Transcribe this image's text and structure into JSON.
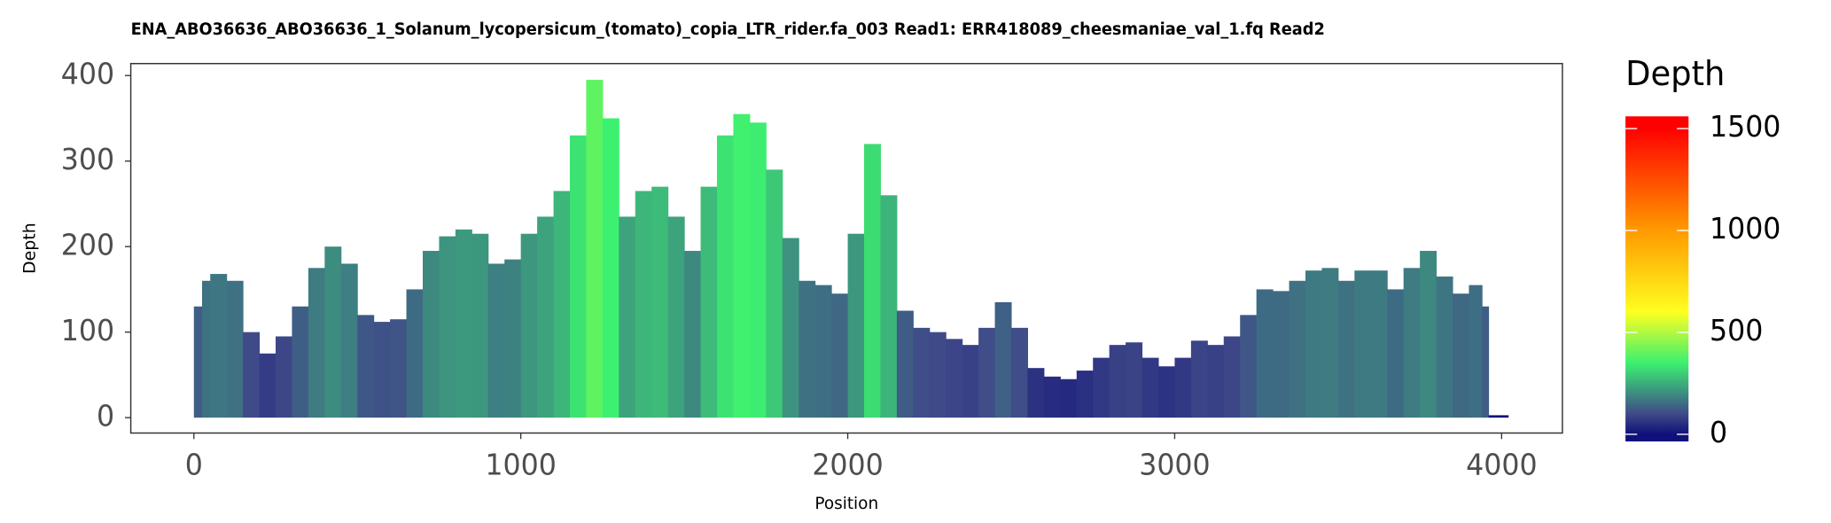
{
  "chart_data": {
    "type": "bar",
    "title": "ENA_ABO36636_ABO36636_1_Solanum_lycopersicum_(tomato)_copia_LTR_rider.fa_003   Read1: ERR418089_cheesmaniae_val_1.fq   Read2",
    "x_label": "Position",
    "y_label": "Depth",
    "legend_title": "Depth",
    "x": [
      0,
      25,
      50,
      100,
      150,
      200,
      250,
      300,
      350,
      400,
      450,
      500,
      550,
      600,
      650,
      700,
      750,
      800,
      850,
      900,
      950,
      1000,
      1050,
      1100,
      1150,
      1200,
      1250,
      1300,
      1350,
      1400,
      1450,
      1500,
      1550,
      1600,
      1650,
      1700,
      1750,
      1800,
      1850,
      1900,
      1950,
      2000,
      2050,
      2100,
      2150,
      2200,
      2250,
      2300,
      2350,
      2400,
      2450,
      2500,
      2550,
      2600,
      2650,
      2700,
      2750,
      2800,
      2850,
      2900,
      2950,
      3000,
      3050,
      3100,
      3150,
      3200,
      3250,
      3300,
      3350,
      3400,
      3450,
      3500,
      3550,
      3600,
      3650,
      3700,
      3750,
      3800,
      3850,
      3900,
      3940,
      3960,
      3990
    ],
    "values": [
      130,
      160,
      168,
      160,
      100,
      75,
      95,
      130,
      175,
      200,
      180,
      120,
      112,
      115,
      150,
      195,
      212,
      220,
      215,
      180,
      185,
      215,
      235,
      265,
      330,
      395,
      350,
      235,
      265,
      270,
      235,
      195,
      270,
      330,
      355,
      345,
      290,
      210,
      160,
      155,
      145,
      215,
      320,
      260,
      125,
      105,
      100,
      92,
      85,
      105,
      135,
      105,
      58,
      48,
      45,
      55,
      70,
      85,
      88,
      70,
      60,
      70,
      90,
      85,
      95,
      120,
      150,
      148,
      160,
      172,
      175,
      160,
      172,
      172,
      150,
      175,
      195,
      165,
      145,
      155,
      130,
      2,
      2
    ],
    "xlim": [
      -193,
      4186
    ],
    "ylim": [
      -18,
      414
    ],
    "xticks": [
      0,
      1000,
      2000,
      3000,
      4000
    ],
    "yticks": [
      0,
      100,
      200,
      300,
      400
    ],
    "clim": [
      -35,
      1560
    ],
    "colorbar_ticks": [
      0,
      500,
      1000,
      1500
    ],
    "colorscale": [
      {
        "value": 0,
        "color": "#10107a"
      },
      {
        "value": 100,
        "color": "#3f4a88"
      },
      {
        "value": 200,
        "color": "#3d8c80"
      },
      {
        "value": 350,
        "color": "#3cf070"
      },
      {
        "value": 600,
        "color": "#ffff20"
      },
      {
        "value": 1000,
        "color": "#ff9a00"
      },
      {
        "value": 1500,
        "color": "#ff0000"
      }
    ]
  }
}
